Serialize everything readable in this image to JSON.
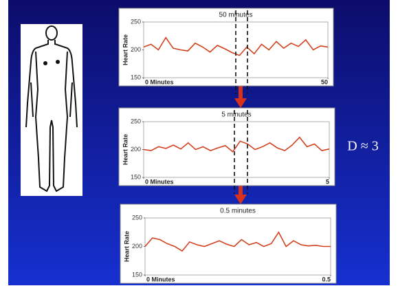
{
  "slide": {
    "annotation": "D ≈ 3"
  },
  "chart_data": [
    {
      "type": "line",
      "title": "50 minutes",
      "ylabel": "Heart Rate",
      "x": [
        0,
        2,
        4,
        6,
        8,
        10,
        12,
        14,
        16,
        18,
        20,
        22,
        24,
        26,
        28,
        30,
        32,
        34,
        36,
        38,
        40,
        42,
        44,
        46,
        48,
        50
      ],
      "values": [
        205,
        210,
        200,
        222,
        203,
        200,
        198,
        212,
        205,
        196,
        208,
        202,
        195,
        190,
        205,
        193,
        210,
        200,
        215,
        203,
        212,
        206,
        218,
        200,
        207,
        205
      ],
      "color": "#d2401e",
      "xlim": [
        0,
        50
      ],
      "xticks": [
        {
          "value": 0,
          "label": "0 Minutes"
        },
        50
      ],
      "ylim": [
        150,
        250
      ],
      "yticks": [
        150,
        200,
        250
      ]
    },
    {
      "type": "line",
      "title": "5 minutes",
      "ylabel": "Heart Rate",
      "x": [
        0,
        0.2,
        0.4,
        0.6,
        0.8,
        1,
        1.2,
        1.4,
        1.6,
        1.8,
        2,
        2.2,
        2.4,
        2.6,
        2.8,
        3,
        3.2,
        3.4,
        3.6,
        3.8,
        4,
        4.2,
        4.4,
        4.6,
        4.8,
        5
      ],
      "values": [
        200,
        198,
        205,
        202,
        208,
        201,
        212,
        200,
        205,
        198,
        203,
        207,
        196,
        215,
        210,
        200,
        205,
        212,
        203,
        198,
        208,
        222,
        205,
        210,
        198,
        201
      ],
      "color": "#d2401e",
      "xlim": [
        0,
        5
      ],
      "xticks": [
        {
          "value": 0,
          "label": "0 Minutes"
        },
        5
      ],
      "ylim": [
        150,
        250
      ],
      "yticks": [
        150,
        200,
        250
      ]
    },
    {
      "type": "line",
      "title": "0.5 minutes",
      "ylabel": "Heart Rate",
      "x": [
        0,
        0.02,
        0.04,
        0.06,
        0.08,
        0.1,
        0.12,
        0.14,
        0.16,
        0.18,
        0.2,
        0.22,
        0.24,
        0.26,
        0.28,
        0.3,
        0.32,
        0.34,
        0.36,
        0.38,
        0.4,
        0.42,
        0.44,
        0.46,
        0.48,
        0.5
      ],
      "values": [
        200,
        215,
        212,
        205,
        200,
        192,
        208,
        203,
        200,
        205,
        210,
        204,
        200,
        212,
        203,
        207,
        200,
        205,
        225,
        200,
        210,
        203,
        201,
        202,
        200,
        200
      ],
      "color": "#d2401e",
      "xlim": [
        0,
        0.5
      ],
      "xticks": [
        {
          "value": 0,
          "label": "0 Minutes"
        },
        0.5
      ],
      "ylim": [
        150,
        250
      ],
      "yticks": [
        150,
        200,
        250
      ]
    }
  ]
}
